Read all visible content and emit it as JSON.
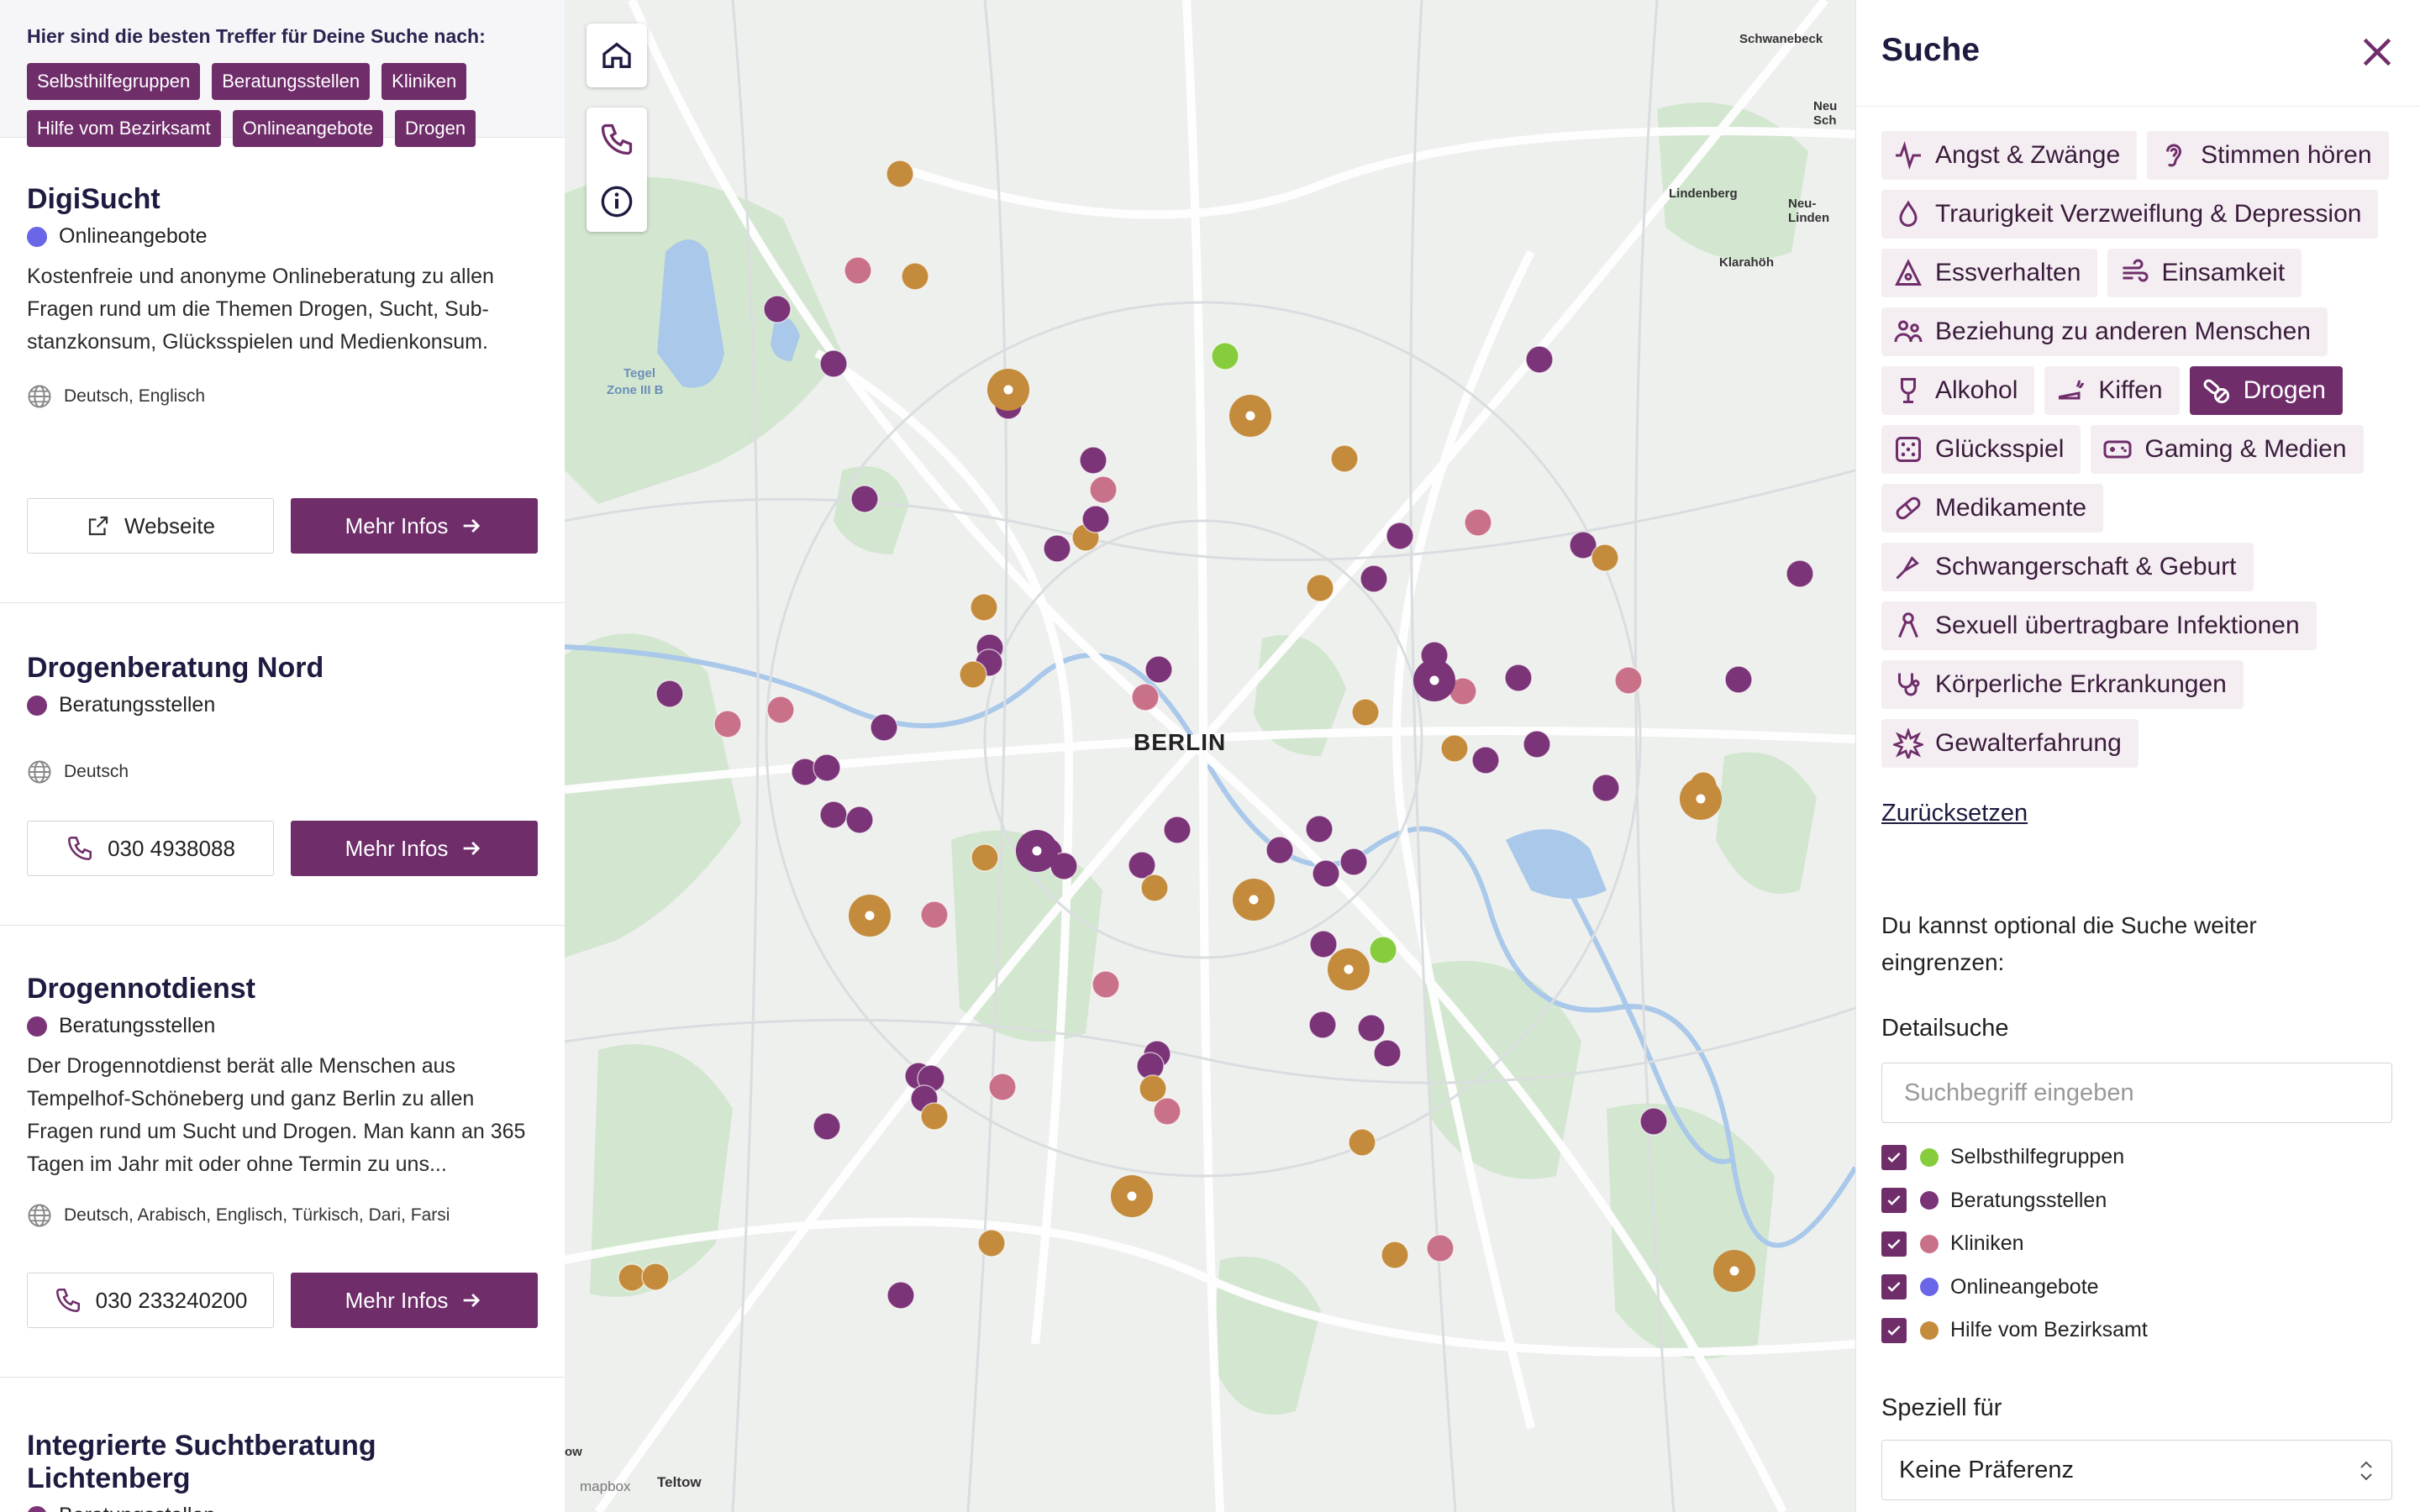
{
  "colors": {
    "selbsthilfegruppen": "#86cc3c",
    "beratungsstellen": "#7a3477",
    "kliniken": "#c97188",
    "onlineangebote": "#6a66e8",
    "hilfe_vom_bezirksamt": "#c48b3c",
    "accent": "#6f2d6a"
  },
  "results_header": {
    "title": "Hier sind die besten Treffer für Deine Suche nach:",
    "chips": [
      "Selbsthilfegruppen",
      "Beratungsstellen",
      "Kliniken",
      "Hilfe vom Bezirksamt",
      "Onlineangebote",
      "Drogen"
    ]
  },
  "results": [
    {
      "title": "DigiSucht",
      "category": "Onlineangebote",
      "description": "Kostenfreie und anonyme Onlineberatung zu allen Fragen rund um die Themen Drogen, Sucht, Sub­stanzkonsum, Glücksspielen und Medienkonsum.",
      "languages": "Deutsch, Englisch",
      "secondary_button": "Webseite",
      "secondary_icon": "external-link-icon",
      "primary_button": "Mehr Infos"
    },
    {
      "title": "Drogenberatung Nord",
      "category": "Beratungsstellen",
      "description": "",
      "languages": "Deutsch",
      "secondary_button": "030 4938088",
      "secondary_icon": "phone-icon",
      "primary_button": "Mehr Infos"
    },
    {
      "title": "Drogennotdienst",
      "category": "Beratungsstellen",
      "description": "Der Drogennotdienst berät alle Menschen aus Tempelhof-Schöneberg und ganz Berlin zu allen Fragen rund um Sucht und Drogen. Man kann an 365 Tagen im Jahr mit oder ohne Termin zu uns...",
      "languages": "Deutsch, Arabisch, Englisch, Türkisch, Dari, Farsi",
      "secondary_button": "030 233240200",
      "secondary_icon": "phone-icon",
      "primary_button": "Mehr Infos"
    },
    {
      "title": "Integrierte Suchtberatung Lichtenberg",
      "category": "Beratungsstellen"
    }
  ],
  "map": {
    "city_label": "BERLIN",
    "place_labels": [
      "Schwanebeck",
      "Neu Sch",
      "Lindenberg",
      "Neu-Linden",
      "Klarahöh",
      "Tegel",
      "Zone III B",
      "Teltow",
      "ow"
    ],
    "controls": [
      "home-icon",
      "phone-icon",
      "info-icon"
    ],
    "attribution": "mapbox"
  },
  "search": {
    "title": "Suche",
    "tags": [
      {
        "label": "Angst & Zwänge",
        "icon": "pulse-icon",
        "active": false
      },
      {
        "label": "Stimmen hören",
        "icon": "ear-icon",
        "active": false
      },
      {
        "label": "Traurigkeit Verzweiflung & Depression",
        "icon": "drop-icon",
        "active": false
      },
      {
        "label": "Essverhalten",
        "icon": "scale-icon",
        "active": false
      },
      {
        "label": "Einsamkeit",
        "icon": "wind-icon",
        "active": false
      },
      {
        "label": "Beziehung zu anderen Menschen",
        "icon": "people-icon",
        "active": false
      },
      {
        "label": "Alkohol",
        "icon": "bottle-icon",
        "active": false
      },
      {
        "label": "Kiffen",
        "icon": "joint-icon",
        "active": false
      },
      {
        "label": "Drogen",
        "icon": "pills-icon",
        "active": true
      },
      {
        "label": "Glücksspiel",
        "icon": "dice-icon",
        "active": false
      },
      {
        "label": "Gaming & Medien",
        "icon": "gamepad-icon",
        "active": false
      },
      {
        "label": "Medikamente",
        "icon": "capsule-icon",
        "active": false
      },
      {
        "label": "Schwangerschaft & Geburt",
        "icon": "pacifier-icon",
        "active": false
      },
      {
        "label": "Sexuell übertragbare Infektionen",
        "icon": "ribbon-icon",
        "active": false
      },
      {
        "label": "Körperliche Erkrankungen",
        "icon": "stethoscope-icon",
        "active": false
      },
      {
        "label": "Gewalterfahrung",
        "icon": "burst-icon",
        "active": false
      }
    ],
    "reset_label": "Zurücksetzen",
    "note": "Du kannst optional die Suche weiter eingrenzen:",
    "detail_label": "Detailsuche",
    "detail_placeholder": "Suchbegriff eingeben",
    "filters": [
      {
        "label": "Selbsthilfegruppen",
        "checked": true,
        "color": "#86cc3c"
      },
      {
        "label": "Beratungsstellen",
        "checked": true,
        "color": "#7a3477"
      },
      {
        "label": "Kliniken",
        "checked": true,
        "color": "#c97188"
      },
      {
        "label": "Onlineangebote",
        "checked": true,
        "color": "#6a66e8"
      },
      {
        "label": "Hilfe vom Bezirksamt",
        "checked": true,
        "color": "#c48b3c"
      }
    ],
    "special_label": "Speziell für",
    "special_value": "Keine Präferenz"
  }
}
